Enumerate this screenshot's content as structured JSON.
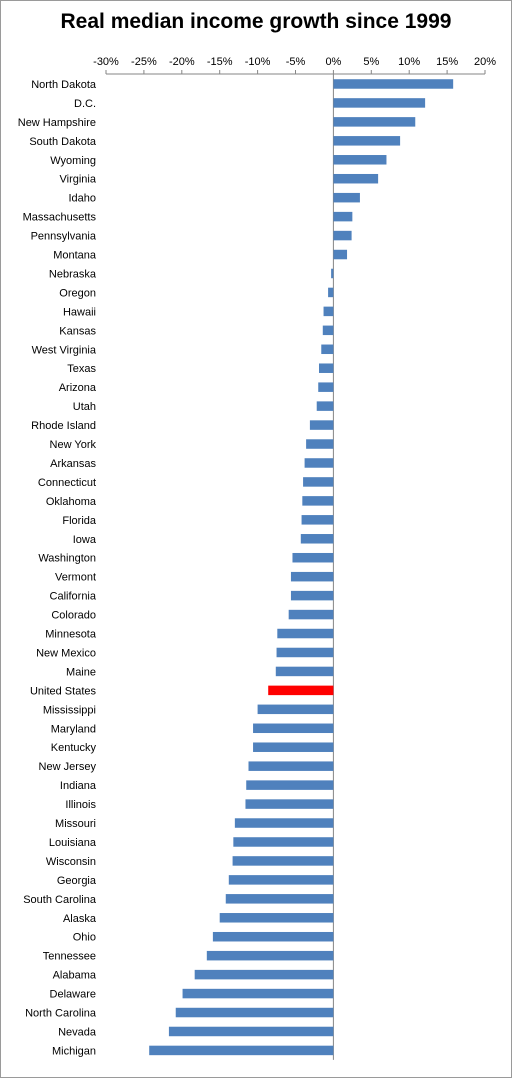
{
  "chart_data": {
    "type": "bar",
    "orientation": "horizontal",
    "title": "Real median income growth since 1999",
    "xlabel": "",
    "ylabel": "",
    "xlim": [
      -30,
      20
    ],
    "x_ticks": [
      -30,
      -25,
      -20,
      -15,
      -10,
      -5,
      0,
      5,
      10,
      15,
      20
    ],
    "x_tick_format": "percent",
    "x_axis_position": "top",
    "grid": false,
    "legend": "none",
    "colors": {
      "default": "#4f81bd",
      "highlight": "#ff0000"
    },
    "highlight_category": "United States",
    "categories": [
      "North Dakota",
      "D.C.",
      "New Hampshire",
      "South Dakota",
      "Wyoming",
      "Virginia",
      "Idaho",
      "Massachusetts",
      "Pennsylvania",
      "Montana",
      "Nebraska",
      "Oregon",
      "Hawaii",
      "Kansas",
      "West Virginia",
      "Texas",
      "Arizona",
      "Utah",
      "Rhode Island",
      "New York",
      "Arkansas",
      "Connecticut",
      "Oklahoma",
      "Florida",
      "Iowa",
      "Washington",
      "Vermont",
      "California",
      "Colorado",
      "Minnesota",
      "New Mexico",
      "Maine",
      "United States",
      "Mississippi",
      "Maryland",
      "Kentucky",
      "New Jersey",
      "Indiana",
      "Illinois",
      "Missouri",
      "Louisiana",
      "Wisconsin",
      "Georgia",
      "South Carolina",
      "Alaska",
      "Ohio",
      "Tennessee",
      "Alabama",
      "Delaware",
      "North Carolina",
      "Nevada",
      "Michigan"
    ],
    "values": [
      15.8,
      12.1,
      10.8,
      8.8,
      7.0,
      5.9,
      3.5,
      2.5,
      2.4,
      1.8,
      -0.3,
      -0.7,
      -1.3,
      -1.4,
      -1.6,
      -1.9,
      -2.0,
      -2.2,
      -3.1,
      -3.6,
      -3.8,
      -4.0,
      -4.1,
      -4.2,
      -4.3,
      -5.4,
      -5.6,
      -5.6,
      -5.9,
      -7.4,
      -7.5,
      -7.6,
      -8.6,
      -10.0,
      -10.6,
      -10.6,
      -11.2,
      -11.5,
      -11.6,
      -13.0,
      -13.2,
      -13.3,
      -13.8,
      -14.2,
      -15.0,
      -15.9,
      -16.7,
      -18.3,
      -19.9,
      -20.8,
      -21.7,
      -24.3
    ]
  }
}
